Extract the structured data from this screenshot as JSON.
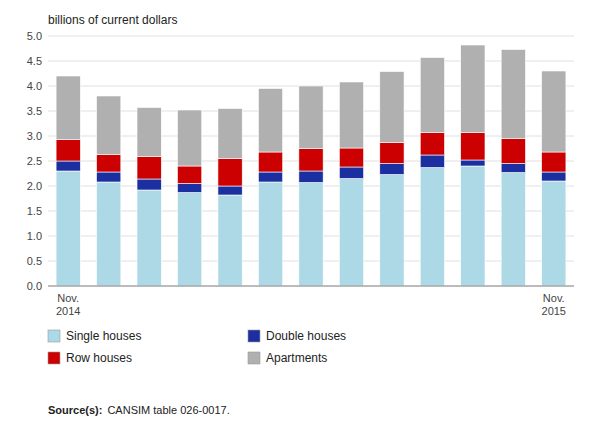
{
  "chart_data": {
    "type": "bar",
    "stacked": true,
    "y_label": "billions of current dollars",
    "categories": [
      "Nov.\n2014",
      null,
      null,
      null,
      null,
      null,
      null,
      null,
      null,
      null,
      null,
      null,
      "Nov.\n2015"
    ],
    "series": [
      {
        "name": "Single houses",
        "color": "#add8e6",
        "values": [
          2.3,
          2.08,
          1.92,
          1.87,
          1.82,
          2.08,
          2.07,
          2.15,
          2.23,
          2.37,
          2.4,
          2.27,
          2.1
        ]
      },
      {
        "name": "Double houses",
        "color": "#1c2fa0",
        "values": [
          0.2,
          0.2,
          0.22,
          0.18,
          0.18,
          0.2,
          0.23,
          0.23,
          0.22,
          0.25,
          0.12,
          0.18,
          0.18
        ]
      },
      {
        "name": "Row houses",
        "color": "#cc0000",
        "values": [
          0.43,
          0.35,
          0.45,
          0.35,
          0.55,
          0.4,
          0.45,
          0.38,
          0.42,
          0.45,
          0.55,
          0.5,
          0.4
        ]
      },
      {
        "name": "Apartments",
        "color": "#b0b0b0",
        "values": [
          1.27,
          1.17,
          0.98,
          1.12,
          1.0,
          1.27,
          1.25,
          1.32,
          1.42,
          1.5,
          1.75,
          1.78,
          1.62
        ]
      }
    ],
    "ylim": [
      0,
      5.0
    ],
    "yticks": [
      {
        "value": 0,
        "label": "0.0"
      },
      0.5,
      {
        "value": 1,
        "label": "1.0"
      },
      1.5,
      {
        "value": 2,
        "label": "2.0"
      },
      2.5,
      {
        "value": 3,
        "label": "3.0"
      },
      3.5,
      {
        "value": 4,
        "label": "4.0"
      },
      4.5,
      {
        "value": 5,
        "label": "5.0"
      }
    ],
    "grid": true,
    "legend": "bottom",
    "annotations": [
      "Source(s):",
      "CANSIM table 026-0017."
    ]
  }
}
